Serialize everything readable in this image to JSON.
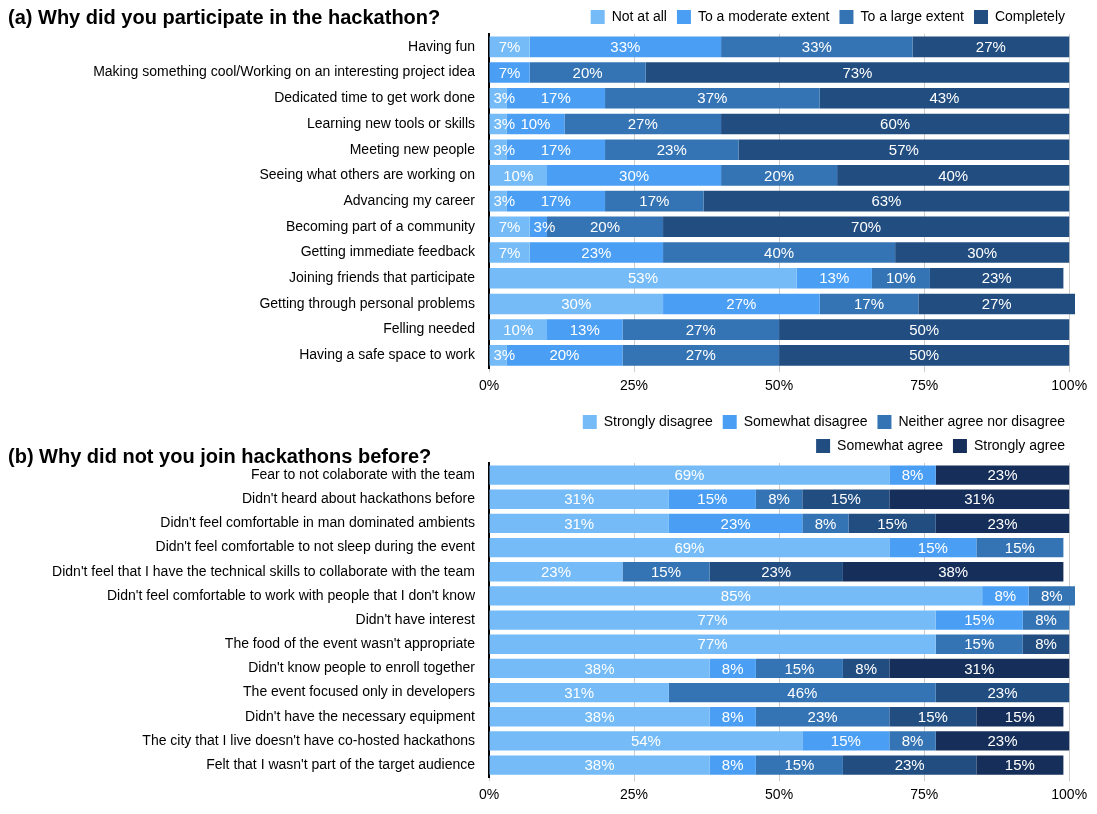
{
  "chart_data": [
    {
      "type": "bar",
      "orientation": "horizontal",
      "stacked": true,
      "title": "(a) Why did you participate in the hackathon?",
      "legend": "top right",
      "grid": "x",
      "xlim": [
        0,
        101
      ],
      "xticks": [
        {
          "value": 0,
          "label": "0%"
        },
        {
          "value": 25,
          "label": "25%"
        },
        {
          "value": 50,
          "label": "50%"
        },
        {
          "value": 75,
          "label": "75%"
        },
        {
          "value": 100,
          "label": "100%"
        }
      ],
      "categories": [
        "Having fun",
        "Making something cool/Working on an interesting project idea",
        "Dedicated time to get work done",
        "Learning new tools or skills",
        "Meeting new people",
        "Seeing what others are working on",
        "Advancing my career",
        "Becoming part of a community",
        "Getting immediate feedback",
        "Joining friends that participate",
        "Getting through personal problems",
        "Felling needed",
        "Having a safe space to work"
      ],
      "series": [
        {
          "name": "Not at all",
          "color": "#74bbf7",
          "values": [
            7,
            null,
            3,
            3,
            3,
            10,
            3,
            7,
            7,
            53,
            30,
            10,
            3
          ],
          "value_labels": [
            "7%",
            null,
            "3%",
            "3%",
            "3%",
            "10%",
            "3%",
            "7%",
            "7%",
            "53%",
            "30%",
            "10%",
            "3%"
          ]
        },
        {
          "name": "To a moderate extent",
          "color": "#4a9ff5",
          "values": [
            33,
            7,
            17,
            10,
            17,
            30,
            17,
            3,
            23,
            13,
            27,
            13,
            20
          ],
          "value_labels": [
            "33%",
            "7%",
            "17%",
            "10%",
            "17%",
            "30%",
            "17%",
            "3%",
            "23%",
            "13%",
            "27%",
            "13%",
            "20%"
          ]
        },
        {
          "name": "To a large extent",
          "color": "#3574b4",
          "values": [
            33,
            20,
            37,
            27,
            23,
            20,
            17,
            20,
            40,
            10,
            17,
            27,
            27
          ],
          "value_labels": [
            "33%",
            "20%",
            "37%",
            "27%",
            "23%",
            "20%",
            "17%",
            "20%",
            "40%",
            "10%",
            "17%",
            "27%",
            "27%"
          ]
        },
        {
          "name": "Completely",
          "color": "#214d80",
          "values": [
            27,
            73,
            43,
            60,
            57,
            40,
            63,
            70,
            30,
            23,
            27,
            50,
            50
          ],
          "value_labels": [
            "27%",
            "73%",
            "43%",
            "60%",
            "57%",
            "40%",
            "63%",
            "70%",
            "30%",
            "23%",
            "27%",
            "50%",
            "50%"
          ]
        }
      ]
    },
    {
      "type": "bar",
      "orientation": "horizontal",
      "stacked": true,
      "title": "(b) Why did not you join hackathons before?",
      "legend": "top right",
      "grid": "x",
      "xlim": [
        0,
        101
      ],
      "xticks": [
        {
          "value": 0,
          "label": "0%"
        },
        {
          "value": 25,
          "label": "25%"
        },
        {
          "value": 50,
          "label": "50%"
        },
        {
          "value": 75,
          "label": "75%"
        },
        {
          "value": 100,
          "label": "100%"
        }
      ],
      "categories": [
        "Fear to not colaborate with the team",
        "Didn't heard about hackathons before",
        "Didn't feel comfortable in man dominated ambients",
        "Didn't feel comfortable to not sleep during the event",
        "Didn't feel that I have the technical skills to collaborate with the team",
        "Didn't feel comfortable to work with people that I don't know",
        "Didn't have interest",
        "The food of the event wasn't appropriate",
        "Didn't know people to enroll together",
        "The event focused only in developers",
        "Didn't have the necessary equipment",
        "The city that I live doesn't have co-hosted hackathons",
        "Felt that I wasn't part of the target audience"
      ],
      "series": [
        {
          "name": "Strongly disagree",
          "color": "#74bbf7",
          "values": [
            69,
            31,
            31,
            69,
            23,
            85,
            77,
            77,
            38,
            31,
            38,
            54,
            38
          ],
          "value_labels": [
            "69%",
            "31%",
            "31%",
            "69%",
            "23%",
            "85%",
            "77%",
            "77%",
            "38%",
            "31%",
            "38%",
            "54%",
            "38%"
          ]
        },
        {
          "name": "Somewhat disagree",
          "color": "#4a9ff5",
          "values": [
            8,
            15,
            23,
            15,
            null,
            8,
            15,
            null,
            8,
            null,
            8,
            15,
            8
          ],
          "value_labels": [
            "8%",
            "15%",
            "23%",
            "15%",
            null,
            "8%",
            "15%",
            null,
            "8%",
            null,
            "8%",
            "15%",
            "8%"
          ]
        },
        {
          "name": "Neither agree nor disagree",
          "color": "#3574b4",
          "values": [
            null,
            8,
            8,
            15,
            15,
            8,
            8,
            15,
            15,
            46,
            23,
            8,
            15
          ],
          "value_labels": [
            null,
            "8%",
            "8%",
            "15%",
            "15%",
            "8%",
            "8%",
            "15%",
            "15%",
            "46%",
            "23%",
            "8%",
            "15%"
          ]
        },
        {
          "name": "Somewhat agree",
          "color": "#214d80",
          "values": [
            null,
            15,
            15,
            null,
            23,
            null,
            null,
            8,
            8,
            23,
            15,
            null,
            23
          ],
          "value_labels": [
            null,
            "15%",
            "15%",
            null,
            "23%",
            null,
            null,
            "8%",
            "8%",
            "23%",
            "15%",
            null,
            "23%"
          ]
        },
        {
          "name": "Strongly agree",
          "color": "#152f5a",
          "values": [
            23,
            31,
            23,
            null,
            38,
            null,
            null,
            null,
            31,
            null,
            15,
            23,
            15
          ],
          "value_labels": [
            "23%",
            "31%",
            "23%",
            null,
            "38%",
            null,
            null,
            null,
            "31%",
            null,
            "15%",
            "23%",
            "15%"
          ]
        }
      ]
    }
  ]
}
